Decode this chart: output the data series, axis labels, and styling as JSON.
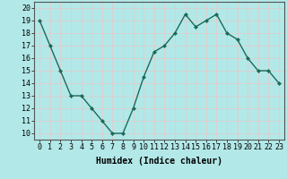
{
  "x": [
    0,
    1,
    2,
    3,
    4,
    5,
    6,
    7,
    8,
    9,
    10,
    11,
    12,
    13,
    14,
    15,
    16,
    17,
    18,
    19,
    20,
    21,
    22,
    23
  ],
  "y": [
    19,
    17,
    15,
    13,
    13,
    12,
    11,
    10,
    10,
    12,
    14.5,
    16.5,
    17,
    18,
    19.5,
    18.5,
    19,
    19.5,
    18,
    17.5,
    16,
    15,
    15,
    14
  ],
  "line_color": "#1a6b5a",
  "marker": "D",
  "marker_size": 2.0,
  "bg_color": "#b3e8e8",
  "grid_color": "#e8c8c8",
  "axis_bg": "#b3e8e8",
  "xlabel": "Humidex (Indice chaleur)",
  "xlim": [
    -0.5,
    23.5
  ],
  "ylim": [
    9.5,
    20.5
  ],
  "yticks": [
    10,
    11,
    12,
    13,
    14,
    15,
    16,
    17,
    18,
    19,
    20
  ],
  "xticks": [
    0,
    1,
    2,
    3,
    4,
    5,
    6,
    7,
    8,
    9,
    10,
    11,
    12,
    13,
    14,
    15,
    16,
    17,
    18,
    19,
    20,
    21,
    22,
    23
  ],
  "xlabel_fontsize": 7,
  "tick_fontsize": 6,
  "linewidth": 1.0,
  "spine_color": "#555555",
  "bottom_bar_color": "#2a7a6a"
}
